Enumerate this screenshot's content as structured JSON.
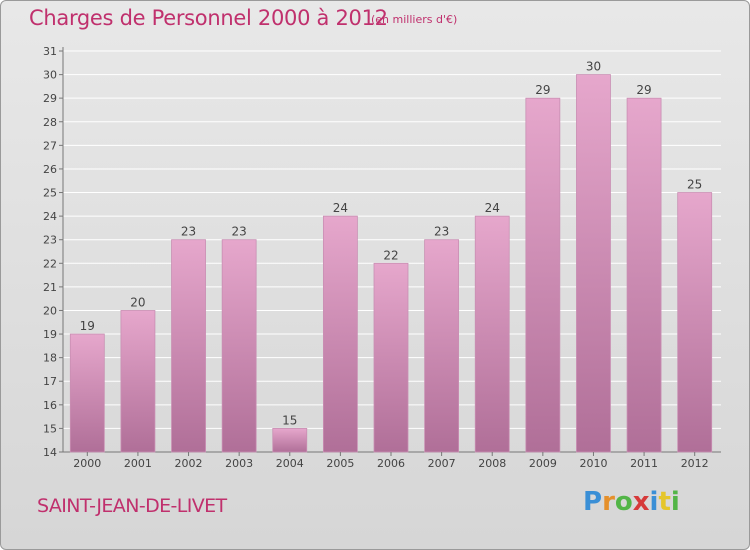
{
  "header": {
    "title": "Charges de Personnel 2000 à 2012",
    "subtitle": "(en milliers d'€)"
  },
  "footer": {
    "commune": "SAINT-JEAN-DE-LIVET",
    "logo_letters": [
      "P",
      "r",
      "o",
      "x",
      "i",
      "t",
      "i"
    ],
    "logo_colors": [
      "#3a8fd6",
      "#e5902b",
      "#52b547",
      "#d63a3a",
      "#3a8fd6",
      "#e5c62b",
      "#52b547"
    ]
  },
  "chart_data": {
    "type": "bar",
    "title": "Charges de Personnel 2000 à 2012",
    "subtitle": "(en milliers d'€)",
    "categories": [
      "2000",
      "2001",
      "2002",
      "2003",
      "2004",
      "2005",
      "2006",
      "2007",
      "2008",
      "2009",
      "2010",
      "2011",
      "2012"
    ],
    "values": [
      19,
      20,
      23,
      23,
      15,
      24,
      22,
      23,
      24,
      29,
      30,
      29,
      25
    ],
    "ylim": [
      14,
      31
    ],
    "yticks": [
      14,
      15,
      16,
      17,
      18,
      19,
      20,
      21,
      22,
      23,
      24,
      25,
      26,
      27,
      28,
      29,
      30,
      31
    ],
    "grid": true,
    "bar_color_top": "#e6a7cc",
    "bar_color_bottom": "#b06f98"
  }
}
